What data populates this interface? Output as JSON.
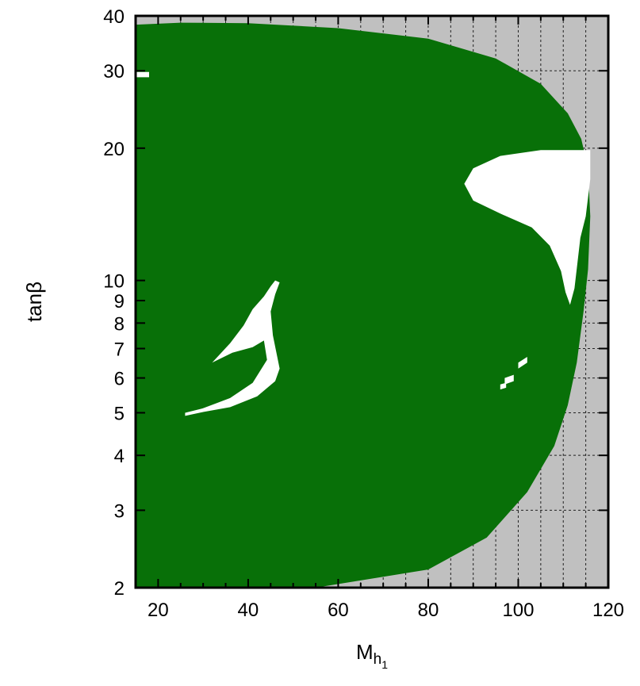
{
  "chart_data": {
    "type": "area",
    "xlabel": "M",
    "xlabel_sub": "h",
    "xlabel_subsub": "1",
    "ylabel": "tanβ",
    "xlim": [
      15,
      120
    ],
    "ylim": [
      2,
      40
    ],
    "yscale": "log",
    "x_ticks": [
      20,
      40,
      60,
      80,
      100,
      120
    ],
    "y_ticks": [
      2,
      3,
      4,
      5,
      6,
      7,
      8,
      9,
      10,
      20,
      30,
      40
    ],
    "grid": "dashed vertical and horizontal lines, visible only in excluded (grey) region",
    "colors": {
      "allowed_region": "#087008",
      "excluded_region": "#c0c0c0",
      "holes": "#ffffff",
      "grid": "#222222"
    },
    "regions": [
      {
        "name": "green region",
        "color": "#087008",
        "outline": [
          [
            15,
            2.0
          ],
          [
            55,
            2.0
          ],
          [
            80,
            2.2
          ],
          [
            93,
            2.6
          ],
          [
            102,
            3.3
          ],
          [
            108,
            4.2
          ],
          [
            111,
            5.2
          ],
          [
            113,
            6.5
          ],
          [
            114.5,
            8.5
          ],
          [
            115.5,
            10.6
          ],
          [
            116,
            14
          ],
          [
            115.5,
            18
          ],
          [
            114,
            21
          ],
          [
            111,
            24
          ],
          [
            105,
            28
          ],
          [
            95,
            32
          ],
          [
            80,
            35.5
          ],
          [
            60,
            37.5
          ],
          [
            40,
            38.5
          ],
          [
            25,
            38.6
          ],
          [
            15,
            38.2
          ]
        ]
      }
    ],
    "holes": [
      {
        "name": "hole-right-lobe",
        "outline": [
          [
            116,
            19.8
          ],
          [
            105,
            19.8
          ],
          [
            96,
            19.2
          ],
          [
            90,
            18
          ],
          [
            88,
            16.6
          ],
          [
            90,
            15.2
          ],
          [
            96,
            14.2
          ],
          [
            103,
            13.2
          ],
          [
            107,
            12
          ],
          [
            109.5,
            10.5
          ],
          [
            110.5,
            9.4
          ],
          [
            111.5,
            8.8
          ],
          [
            112.5,
            9.6
          ],
          [
            113.8,
            12.5
          ],
          [
            115,
            14
          ],
          [
            116,
            17
          ]
        ]
      },
      {
        "name": "hole-left-hook",
        "outline": [
          [
            46,
            10
          ],
          [
            47,
            9.9
          ],
          [
            46,
            9.3
          ],
          [
            45,
            8.5
          ],
          [
            45.5,
            7.5
          ],
          [
            47,
            6.3
          ],
          [
            46,
            5.9
          ],
          [
            42,
            5.45
          ],
          [
            36,
            5.15
          ],
          [
            30,
            5.02
          ],
          [
            26,
            4.92
          ],
          [
            26,
            5.0
          ],
          [
            30,
            5.12
          ],
          [
            36,
            5.4
          ],
          [
            41,
            5.85
          ],
          [
            44.2,
            6.6
          ],
          [
            43.5,
            7.3
          ],
          [
            41,
            7.05
          ],
          [
            36.5,
            6.85
          ],
          [
            32,
            6.5
          ],
          [
            36,
            7.2
          ],
          [
            39,
            7.9
          ],
          [
            41,
            8.6
          ],
          [
            43.5,
            9.2
          ],
          [
            45,
            9.7
          ]
        ]
      },
      {
        "name": "hole-top-left-tick",
        "outline": [
          [
            15,
            29.0
          ],
          [
            18,
            29.0
          ],
          [
            18,
            29.8
          ],
          [
            15,
            29.8
          ]
        ]
      },
      {
        "name": "hole-speck-1",
        "outline": [
          [
            97,
            5.8
          ],
          [
            99,
            5.9
          ],
          [
            99,
            6.1
          ],
          [
            97,
            6.0
          ]
        ]
      },
      {
        "name": "hole-speck-2",
        "outline": [
          [
            100,
            6.3
          ],
          [
            102,
            6.5
          ],
          [
            102,
            6.7
          ],
          [
            100,
            6.5
          ]
        ]
      },
      {
        "name": "hole-speck-3",
        "outline": [
          [
            96,
            5.65
          ],
          [
            97.3,
            5.7
          ],
          [
            97.3,
            5.85
          ],
          [
            96,
            5.8
          ]
        ]
      }
    ]
  }
}
